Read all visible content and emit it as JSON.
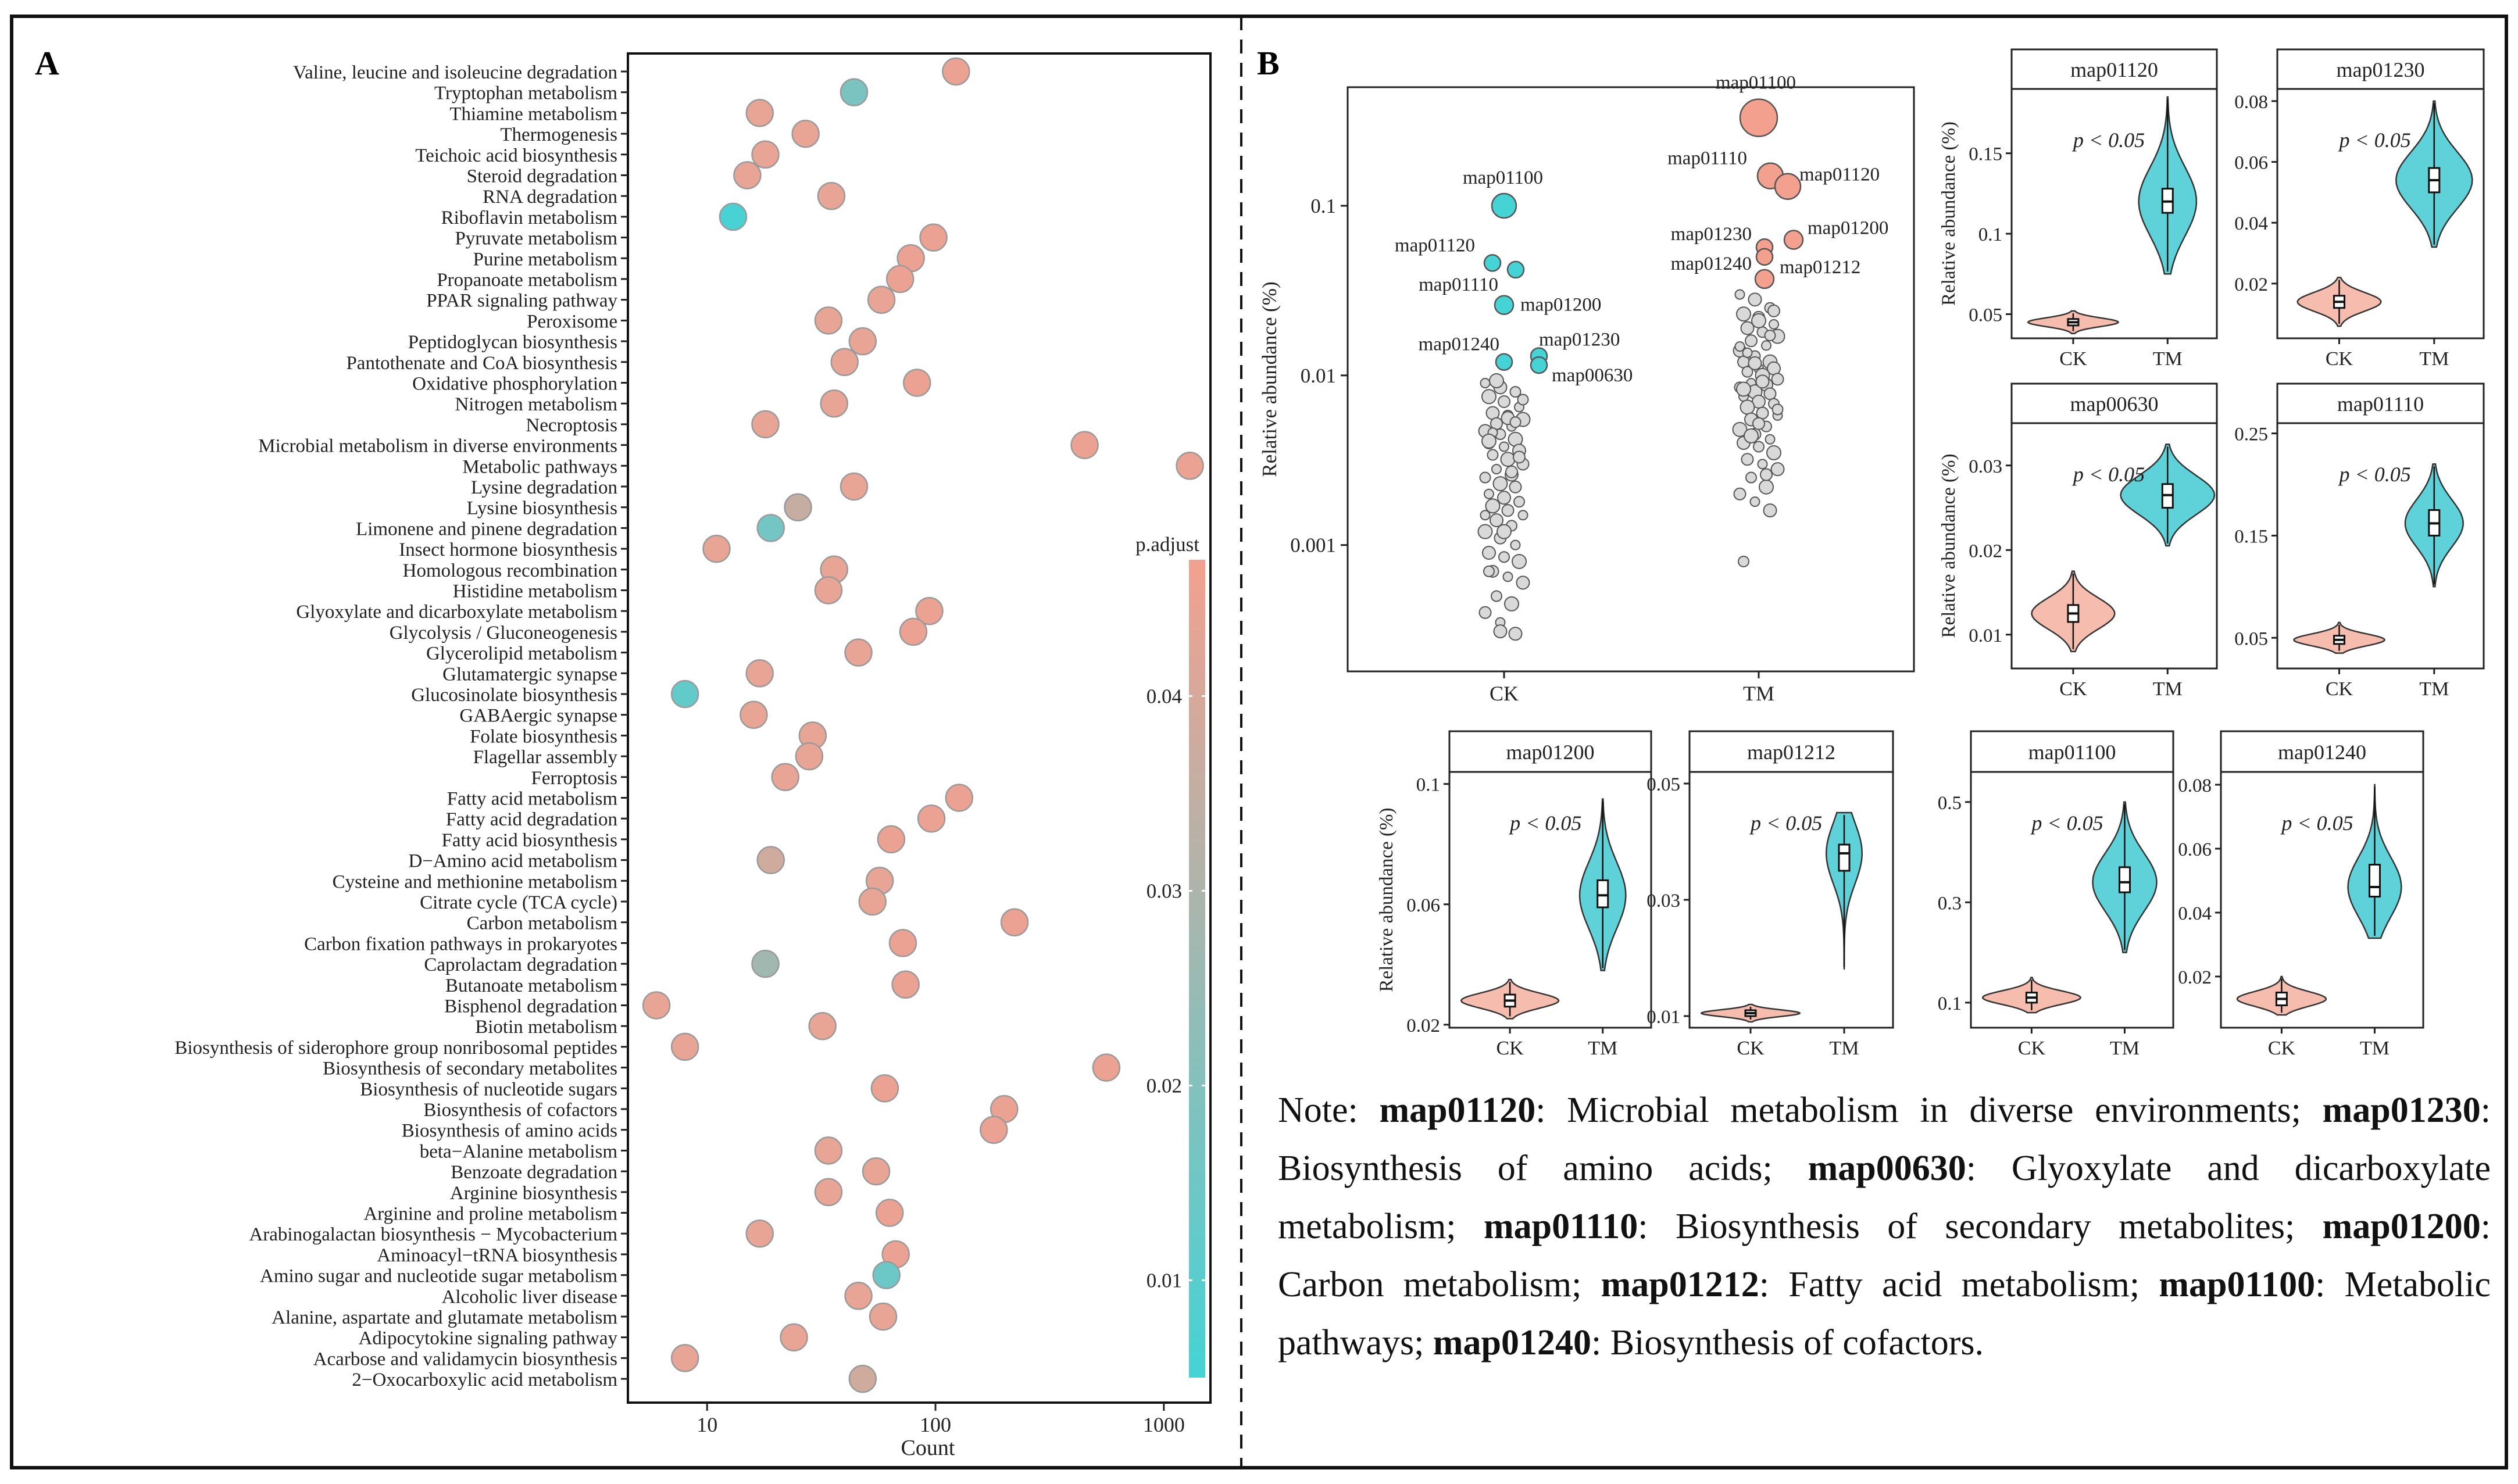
{
  "panels": {
    "a_label": "A",
    "b_label": "B"
  },
  "chart_data": [
    {
      "id": "dotplot",
      "type": "scatter",
      "xlabel": "Count",
      "xscale": "log",
      "xlim": [
        4.5,
        1600
      ],
      "xticks": [
        10,
        100,
        1000
      ],
      "legend": {
        "title": "p.adjust",
        "ticks": [
          0.04,
          0.03,
          0.02,
          0.01
        ],
        "range": [
          0.005,
          0.047
        ],
        "position": "right"
      },
      "pathways": [
        {
          "name": "Valine, leucine and isoleucine degradation",
          "count": 123,
          "p": 0.045
        },
        {
          "name": "Tryptophan metabolism",
          "count": 44,
          "p": 0.018
        },
        {
          "name": "Thiamine metabolism",
          "count": 17,
          "p": 0.044
        },
        {
          "name": "Thermogenesis",
          "count": 27,
          "p": 0.044
        },
        {
          "name": "Teichoic acid biosynthesis",
          "count": 18,
          "p": 0.044
        },
        {
          "name": "Steroid degradation",
          "count": 15,
          "p": 0.044
        },
        {
          "name": "RNA degradation",
          "count": 35,
          "p": 0.044
        },
        {
          "name": "Riboflavin metabolism",
          "count": 13,
          "p": 0.006
        },
        {
          "name": "Pyruvate metabolism",
          "count": 98,
          "p": 0.045
        },
        {
          "name": "Purine metabolism",
          "count": 78,
          "p": 0.045
        },
        {
          "name": "Propanoate metabolism",
          "count": 70,
          "p": 0.045
        },
        {
          "name": "PPAR signaling pathway",
          "count": 58,
          "p": 0.044
        },
        {
          "name": "Peroxisome",
          "count": 34,
          "p": 0.044
        },
        {
          "name": "Peptidoglycan biosynthesis",
          "count": 48,
          "p": 0.044
        },
        {
          "name": "Pantothenate and CoA biosynthesis",
          "count": 40,
          "p": 0.044
        },
        {
          "name": "Oxidative phosphorylation",
          "count": 83,
          "p": 0.045
        },
        {
          "name": "Nitrogen metabolism",
          "count": 36,
          "p": 0.044
        },
        {
          "name": "Necroptosis",
          "count": 18,
          "p": 0.044
        },
        {
          "name": "Microbial metabolism in diverse environments",
          "count": 450,
          "p": 0.045
        },
        {
          "name": "Metabolic pathways",
          "count": 1300,
          "p": 0.045
        },
        {
          "name": "Lysine degradation",
          "count": 44,
          "p": 0.044
        },
        {
          "name": "Lysine biosynthesis",
          "count": 25,
          "p": 0.036
        },
        {
          "name": "Limonene and pinene degradation",
          "count": 19,
          "p": 0.016
        },
        {
          "name": "Insect hormone biosynthesis",
          "count": 11,
          "p": 0.044
        },
        {
          "name": "Homologous recombination",
          "count": 36,
          "p": 0.044
        },
        {
          "name": "Histidine metabolism",
          "count": 34,
          "p": 0.044
        },
        {
          "name": "Glyoxylate and dicarboxylate metabolism",
          "count": 94,
          "p": 0.045
        },
        {
          "name": "Glycolysis / Gluconeogenesis",
          "count": 80,
          "p": 0.045
        },
        {
          "name": "Glycerolipid metabolism",
          "count": 46,
          "p": 0.044
        },
        {
          "name": "Glutamatergic synapse",
          "count": 17,
          "p": 0.044
        },
        {
          "name": "Glucosinolate biosynthesis",
          "count": 8,
          "p": 0.012
        },
        {
          "name": "GABAergic synapse",
          "count": 16,
          "p": 0.044
        },
        {
          "name": "Folate biosynthesis",
          "count": 29,
          "p": 0.044
        },
        {
          "name": "Flagellar assembly",
          "count": 28,
          "p": 0.044
        },
        {
          "name": "Ferroptosis",
          "count": 22,
          "p": 0.044
        },
        {
          "name": "Fatty acid metabolism",
          "count": 127,
          "p": 0.045
        },
        {
          "name": "Fatty acid degradation",
          "count": 96,
          "p": 0.045
        },
        {
          "name": "Fatty acid biosynthesis",
          "count": 64,
          "p": 0.045
        },
        {
          "name": "D−Amino acid metabolism",
          "count": 19,
          "p": 0.038
        },
        {
          "name": "Cysteine and methionine metabolism",
          "count": 57,
          "p": 0.044
        },
        {
          "name": "Citrate cycle (TCA cycle)",
          "count": 53,
          "p": 0.044
        },
        {
          "name": "Carbon metabolism",
          "count": 222,
          "p": 0.045
        },
        {
          "name": "Carbon fixation pathways in prokaryotes",
          "count": 72,
          "p": 0.045
        },
        {
          "name": "Caprolactam degradation",
          "count": 18,
          "p": 0.027
        },
        {
          "name": "Butanoate metabolism",
          "count": 74,
          "p": 0.045
        },
        {
          "name": "Bisphenol degradation",
          "count": 6,
          "p": 0.044
        },
        {
          "name": "Biotin metabolism",
          "count": 32,
          "p": 0.044
        },
        {
          "name": "Biosynthesis of siderophore group nonribosomal peptides",
          "count": 8,
          "p": 0.044
        },
        {
          "name": "Biosynthesis of secondary metabolites",
          "count": 560,
          "p": 0.045
        },
        {
          "name": "Biosynthesis of nucleotide sugars",
          "count": 60,
          "p": 0.045
        },
        {
          "name": "Biosynthesis of cofactors",
          "count": 200,
          "p": 0.045
        },
        {
          "name": "Biosynthesis of amino acids",
          "count": 180,
          "p": 0.045
        },
        {
          "name": "beta−Alanine metabolism",
          "count": 34,
          "p": 0.044
        },
        {
          "name": "Benzoate degradation",
          "count": 55,
          "p": 0.044
        },
        {
          "name": "Arginine biosynthesis",
          "count": 34,
          "p": 0.044
        },
        {
          "name": "Arginine and proline metabolism",
          "count": 63,
          "p": 0.045
        },
        {
          "name": "Arabinogalactan biosynthesis − Mycobacterium",
          "count": 17,
          "p": 0.044
        },
        {
          "name": "Aminoacyl−tRNA biosynthesis",
          "count": 67,
          "p": 0.045
        },
        {
          "name": "Amino sugar and nucleotide sugar metabolism",
          "count": 61,
          "p": 0.014
        },
        {
          "name": "Alcoholic liver disease",
          "count": 46,
          "p": 0.044
        },
        {
          "name": "Alanine, aspartate and glutamate metabolism",
          "count": 59,
          "p": 0.044
        },
        {
          "name": "Adipocytokine signaling pathway",
          "count": 24,
          "p": 0.044
        },
        {
          "name": "Acarbose and validamycin biosynthesis",
          "count": 8,
          "p": 0.044
        },
        {
          "name": "2−Oxocarboxylic acid metabolism",
          "count": 48,
          "p": 0.038
        }
      ]
    },
    {
      "id": "abundance_scatter",
      "type": "scatter",
      "ylabel": "Relative abundance (%)",
      "yscale": "log",
      "ylim": [
        0.00018,
        0.5
      ],
      "yticks": [
        0.1,
        0.01,
        0.001
      ],
      "categories": [
        "CK",
        "TM"
      ],
      "labeled_points": [
        {
          "group": "CK",
          "label": "map01100",
          "value": 0.1,
          "dx": 0
        },
        {
          "group": "CK",
          "label": "map01120",
          "value": 0.046,
          "dx": -20
        },
        {
          "group": "CK",
          "label": "map01110",
          "value": 0.042,
          "dx": 20
        },
        {
          "group": "CK",
          "label": "map01200",
          "value": 0.026,
          "dx": 0
        },
        {
          "group": "CK",
          "label": "map01240",
          "value": 0.012,
          "dx": 0
        },
        {
          "group": "CK",
          "label": "map01230",
          "value": 0.013,
          "dx": 60
        },
        {
          "group": "CK",
          "label": "map00630",
          "value": 0.0115,
          "dx": 60
        },
        {
          "group": "TM",
          "label": "map01100",
          "value": 0.33,
          "dx": 0
        },
        {
          "group": "TM",
          "label": "map01110",
          "value": 0.15,
          "dx": 20
        },
        {
          "group": "TM",
          "label": "map01120",
          "value": 0.13,
          "dx": 50
        },
        {
          "group": "TM",
          "label": "map01200",
          "value": 0.063,
          "dx": 60
        },
        {
          "group": "TM",
          "label": "map01230",
          "value": 0.057,
          "dx": 10
        },
        {
          "group": "TM",
          "label": "map01240",
          "value": 0.05,
          "dx": 10
        },
        {
          "group": "TM",
          "label": "map01212",
          "value": 0.037,
          "dx": 10
        }
      ],
      "background_points": {
        "CK": [
          0.009,
          0.0085,
          0.008,
          0.0075,
          0.007,
          0.0065,
          0.006,
          0.0058,
          0.0055,
          0.0052,
          0.005,
          0.0047,
          0.0045,
          0.0042,
          0.004,
          0.0038,
          0.0036,
          0.0034,
          0.0032,
          0.003,
          0.0028,
          0.0026,
          0.0025,
          0.0023,
          0.0022,
          0.002,
          0.0019,
          0.0018,
          0.0017,
          0.0016,
          0.0015,
          0.0014,
          0.0013,
          0.0012,
          0.0011,
          0.001,
          0.0009,
          0.00085,
          0.0008,
          0.0007,
          0.00065,
          0.0006,
          0.0005,
          0.00045,
          0.0004,
          0.00035,
          0.0003,
          0.0007,
          0.0012,
          0.0033,
          0.0046,
          0.0056,
          0.0072,
          0.0093,
          0.0027,
          0.0015,
          0.00031,
          0.0053,
          0.0041
        ],
        "TM": [
          0.03,
          0.028,
          0.025,
          0.023,
          0.022,
          0.02,
          0.019,
          0.018,
          0.017,
          0.016,
          0.015,
          0.014,
          0.013,
          0.012,
          0.012,
          0.011,
          0.011,
          0.0105,
          0.01,
          0.0095,
          0.009,
          0.0088,
          0.0085,
          0.008,
          0.0078,
          0.0075,
          0.007,
          0.0068,
          0.0065,
          0.006,
          0.0058,
          0.0055,
          0.005,
          0.0048,
          0.0045,
          0.0042,
          0.004,
          0.0038,
          0.0035,
          0.0032,
          0.003,
          0.0028,
          0.0025,
          0.0022,
          0.002,
          0.0018,
          0.0016,
          0.0008,
          0.021,
          0.024,
          0.0136,
          0.0092,
          0.0063,
          0.0044,
          0.0026,
          0.0148,
          0.0118,
          0.0172,
          0.0083,
          0.0052
        ]
      }
    },
    {
      "id": "violins",
      "type": "violin",
      "ylabel": "Relative abundance (%)",
      "categories": [
        "CK",
        "TM"
      ],
      "annotation": "p < 0.05",
      "panels": [
        {
          "title": "map01120",
          "ticks": [
            0.05,
            0.1,
            0.15
          ],
          "ylim": [
            0.035,
            0.19
          ],
          "ck": {
            "median": 0.045,
            "q1": 0.043,
            "q3": 0.047,
            "min": 0.038,
            "max": 0.052,
            "width": 0.5
          },
          "tm": {
            "median": 0.12,
            "q1": 0.113,
            "q3": 0.128,
            "min": 0.075,
            "max": 0.185,
            "width": 0.32
          }
        },
        {
          "title": "map01230",
          "ticks": [
            0.02,
            0.04,
            0.06,
            0.08
          ],
          "ylim": [
            0.002,
            0.084
          ],
          "ck": {
            "median": 0.014,
            "q1": 0.012,
            "q3": 0.016,
            "min": 0.006,
            "max": 0.022,
            "width": 0.46
          },
          "tm": {
            "median": 0.054,
            "q1": 0.05,
            "q3": 0.058,
            "min": 0.032,
            "max": 0.08,
            "width": 0.42
          }
        },
        {
          "title": "map00630",
          "ticks": [
            0.01,
            0.02,
            0.03
          ],
          "ylim": [
            0.006,
            0.035
          ],
          "ck": {
            "median": 0.0125,
            "q1": 0.0115,
            "q3": 0.0135,
            "min": 0.008,
            "max": 0.0175,
            "width": 0.46
          },
          "tm": {
            "median": 0.0265,
            "q1": 0.025,
            "q3": 0.0278,
            "min": 0.0205,
            "max": 0.0325,
            "width": 0.52
          }
        },
        {
          "title": "map01110",
          "ticks": [
            0.05,
            0.15,
            0.25
          ],
          "ylim": [
            0.02,
            0.26
          ],
          "ck": {
            "median": 0.048,
            "q1": 0.044,
            "q3": 0.052,
            "min": 0.035,
            "max": 0.065,
            "width": 0.5
          },
          "tm": {
            "median": 0.162,
            "q1": 0.15,
            "q3": 0.175,
            "min": 0.1,
            "max": 0.22,
            "width": 0.32
          }
        },
        {
          "title": "map01200",
          "ticks": [
            0.02,
            0.06,
            0.1
          ],
          "ylim": [
            0.019,
            0.104
          ],
          "ck": {
            "median": 0.028,
            "q1": 0.026,
            "q3": 0.03,
            "min": 0.022,
            "max": 0.035,
            "width": 0.55
          },
          "tm": {
            "median": 0.063,
            "q1": 0.059,
            "q3": 0.068,
            "min": 0.038,
            "max": 0.095,
            "width": 0.26
          }
        },
        {
          "title": "map01212",
          "ticks": [
            0.01,
            0.03,
            0.05
          ],
          "ylim": [
            0.008,
            0.052
          ],
          "ck": {
            "median": 0.0105,
            "q1": 0.01,
            "q3": 0.011,
            "min": 0.009,
            "max": 0.012,
            "width": 0.55
          },
          "tm": {
            "median": 0.038,
            "q1": 0.035,
            "q3": 0.0395,
            "min": 0.018,
            "max": 0.045,
            "width": 0.2
          }
        },
        {
          "title": "map01100",
          "ticks": [
            0.1,
            0.3,
            0.5
          ],
          "ylim": [
            0.05,
            0.56
          ],
          "ck": {
            "median": 0.11,
            "q1": 0.1,
            "q3": 0.12,
            "min": 0.08,
            "max": 0.15,
            "width": 0.55
          },
          "tm": {
            "median": 0.34,
            "q1": 0.32,
            "q3": 0.37,
            "min": 0.2,
            "max": 0.5,
            "width": 0.36
          }
        },
        {
          "title": "map01240",
          "ticks": [
            0.02,
            0.04,
            0.06,
            0.08
          ],
          "ylim": [
            0.004,
            0.084
          ],
          "ck": {
            "median": 0.013,
            "q1": 0.011,
            "q3": 0.015,
            "min": 0.008,
            "max": 0.02,
            "width": 0.5
          },
          "tm": {
            "median": 0.048,
            "q1": 0.045,
            "q3": 0.055,
            "min": 0.032,
            "max": 0.08,
            "width": 0.3
          }
        }
      ]
    }
  ],
  "note": {
    "prefix": "Note: ",
    "items": [
      {
        "code": "map01120",
        "desc": ": Microbial metabolism in diverse environments; "
      },
      {
        "code": "map01230",
        "desc": ": Biosynthesis of amino acids; "
      },
      {
        "code": "map00630",
        "desc": ": Glyoxylate and dicarboxylate metabolism; "
      },
      {
        "code": "map01110",
        "desc": ": Biosynthesis of secondary metabolites; "
      },
      {
        "code": "map01200",
        "desc": ": Carbon metabolism; "
      },
      {
        "code": "map01212",
        "desc": ": Fatty acid metabolism; "
      },
      {
        "code": "map01100",
        "desc": ": Metabolic pathways; "
      },
      {
        "code": "map01240",
        "desc": ": Biosynthesis of cofactors."
      }
    ]
  },
  "colors": {
    "salmon": "#F4A08F",
    "salmon_violin": "#F6BCAE",
    "cyan": "#45D3D6",
    "cyan_violin": "#5ED2D8",
    "gray_point": "#D9D9D9",
    "outline": "#9A9A9A",
    "panel_border": "#111111"
  }
}
